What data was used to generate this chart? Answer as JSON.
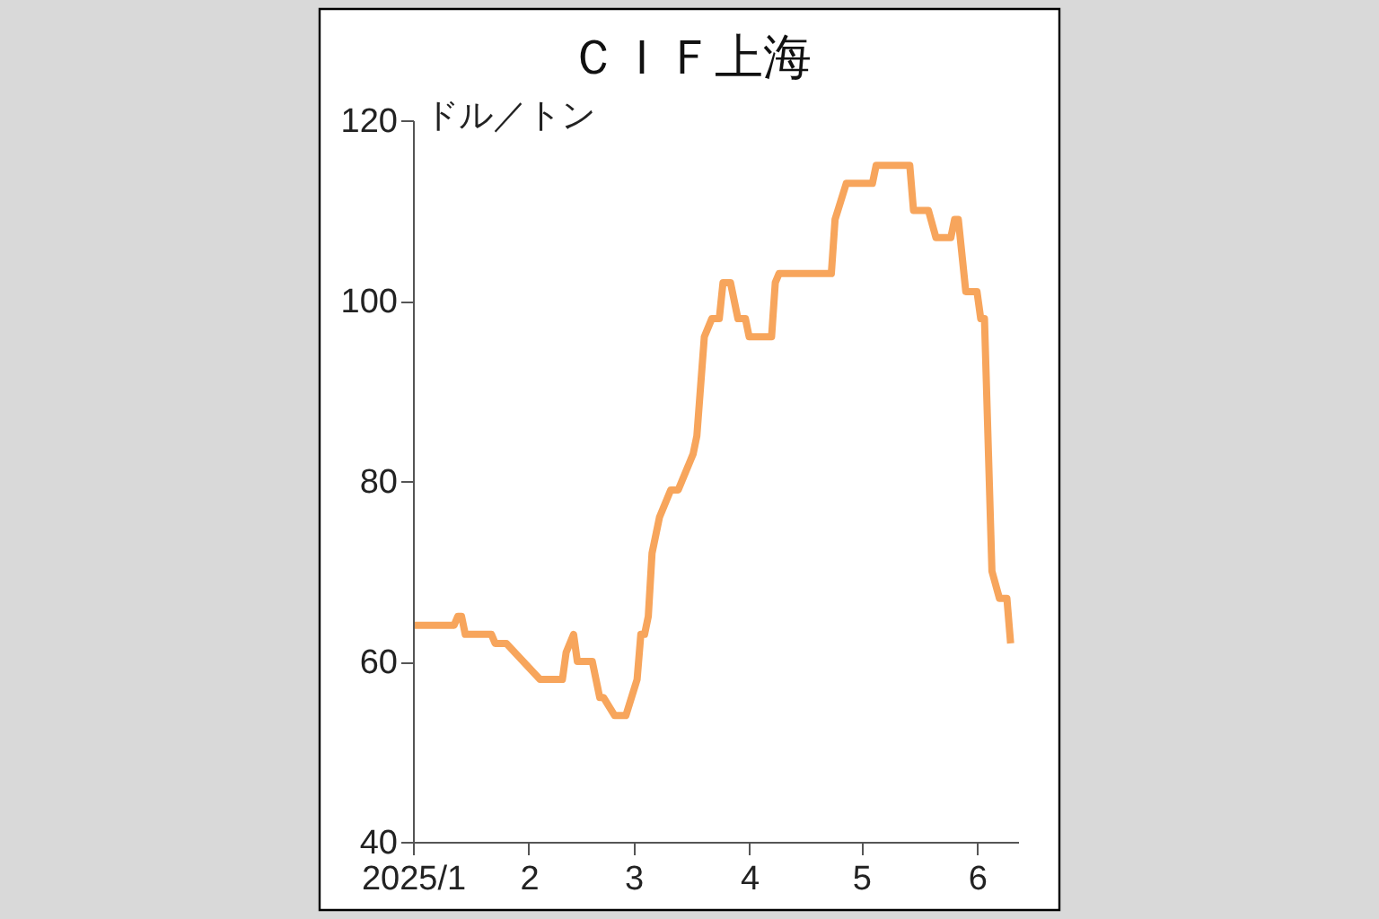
{
  "chart_data": {
    "type": "line",
    "title": "ＣＩＦ上海",
    "ylabel": "ドル／トン",
    "x": [
      "2025-01-01",
      "2025-01-12",
      "2025-01-13",
      "2025-01-14",
      "2025-01-15",
      "2025-01-22",
      "2025-01-23",
      "2025-01-26",
      "2025-02-04",
      "2025-02-10",
      "2025-02-11",
      "2025-02-13",
      "2025-02-14",
      "2025-02-18",
      "2025-02-20",
      "2025-02-21",
      "2025-02-24",
      "2025-02-27",
      "2025-03-02",
      "2025-03-03",
      "2025-03-04",
      "2025-03-05",
      "2025-03-06",
      "2025-03-08",
      "2025-03-11",
      "2025-03-13",
      "2025-03-17",
      "2025-03-18",
      "2025-03-20",
      "2025-03-22",
      "2025-03-24",
      "2025-03-25",
      "2025-03-27",
      "2025-03-29",
      "2025-03-31",
      "2025-04-01",
      "2025-04-07",
      "2025-04-08",
      "2025-04-09",
      "2025-04-23",
      "2025-04-24",
      "2025-04-27",
      "2025-05-04",
      "2025-05-05",
      "2025-05-14",
      "2025-05-15",
      "2025-05-19",
      "2025-05-21",
      "2025-05-25",
      "2025-05-26",
      "2025-05-27",
      "2025-05-29",
      "2025-06-01",
      "2025-06-02",
      "2025-06-03",
      "2025-06-05",
      "2025-06-07",
      "2025-06-09",
      "2025-06-10"
    ],
    "series": [
      {
        "color": "#f7a55c",
        "values": [
          64,
          64,
          65,
          65,
          63,
          63,
          62,
          62,
          58,
          58,
          61,
          63,
          60,
          60,
          56,
          56,
          54,
          54,
          58,
          63,
          63,
          65,
          72,
          76,
          79,
          79,
          83,
          85,
          96,
          98,
          98,
          102,
          102,
          98,
          98,
          96,
          96,
          102,
          103,
          103,
          109,
          113,
          113,
          115,
          115,
          110,
          110,
          107,
          107,
          109,
          109,
          101,
          101,
          98,
          98,
          70,
          67,
          67,
          62
        ]
      }
    ],
    "xlim": [
      "2025-01-01",
      "2025-06-12"
    ],
    "xticks": [
      {
        "value": "2025-01-01",
        "label": "2025/1"
      },
      {
        "value": "2025-02-01",
        "label": "2"
      },
      {
        "value": "2025-03-01",
        "label": "3"
      },
      {
        "value": "2025-04-01",
        "label": "4"
      },
      {
        "value": "2025-05-01",
        "label": "5"
      },
      {
        "value": "2025-06-01",
        "label": "6"
      }
    ],
    "ylim": [
      40,
      120
    ],
    "yticks": [
      40,
      60,
      80,
      100,
      120
    ],
    "marker": "none",
    "line_style": "solid"
  }
}
